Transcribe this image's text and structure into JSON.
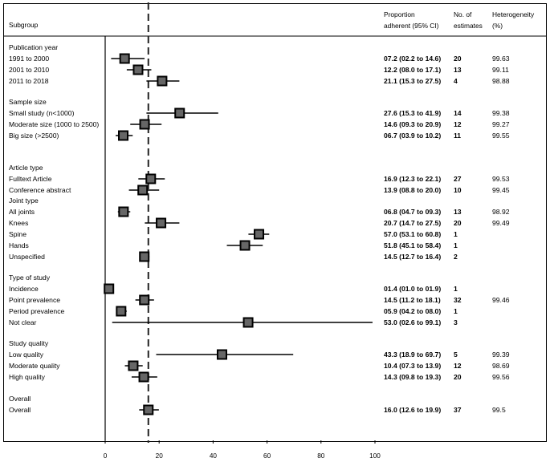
{
  "headers": {
    "subgroup": "Subgroup",
    "proportion_line1": "Proportion",
    "proportion_line2": "adherent (95% CI)",
    "estimates_line1": "No. of",
    "estimates_line2": "estimates",
    "heterogeneity_line1": "Heterogeneity",
    "heterogeneity_line2": "(%)"
  },
  "chart_data": {
    "type": "forest",
    "xlim": [
      0,
      100
    ],
    "xticks": [
      "0",
      "20",
      "40",
      "60",
      "80",
      "100"
    ],
    "reference_line": 16.0,
    "groups": [
      {
        "title": "Publication year",
        "rows": [
          {
            "label": "1991 to 2000",
            "est": 7.2,
            "lo": 2.2,
            "hi": 14.6,
            "ci_text": "07.2 (02.2 to 14.6)",
            "n": "20",
            "het": "99.63"
          },
          {
            "label": "2001 to 2010",
            "est": 12.2,
            "lo": 8.0,
            "hi": 17.1,
            "ci_text": "12.2 (08.0 to 17.1)",
            "n": "13",
            "het": "99.11"
          },
          {
            "label": "2011 to 2018",
            "est": 21.1,
            "lo": 15.3,
            "hi": 27.5,
            "ci_text": "21.1 (15.3 to 27.5)",
            "n": "4",
            "het": "98.88"
          }
        ]
      },
      {
        "title": "Sample size",
        "rows": [
          {
            "label": "Small study (n<1000)",
            "est": 27.6,
            "lo": 15.3,
            "hi": 41.9,
            "ci_text": "27.6 (15.3 to 41.9)",
            "n": "14",
            "het": "99.38"
          },
          {
            "label": "Moderate size (1000 to 2500)",
            "est": 14.6,
            "lo": 9.3,
            "hi": 20.9,
            "ci_text": "14.6 (09.3 to 20.9)",
            "n": "12",
            "het": "99.27"
          },
          {
            "label": "Big size (>2500)",
            "est": 6.7,
            "lo": 3.9,
            "hi": 10.2,
            "ci_text": "06.7 (03.9 to 10.2)",
            "n": "11",
            "het": "99.55"
          }
        ]
      },
      {
        "title": "Article type",
        "rows": [
          {
            "label": "Fulltext Article",
            "est": 16.9,
            "lo": 12.3,
            "hi": 22.1,
            "ci_text": "16.9 (12.3 to 22.1)",
            "n": "27",
            "het": "99.53"
          },
          {
            "label": "Conference abstract",
            "est": 13.9,
            "lo": 8.8,
            "hi": 20.0,
            "ci_text": "13.9 (08.8 to 20.0)",
            "n": "10",
            "het": "99.45"
          }
        ]
      },
      {
        "title": "Joint type",
        "rows": [
          {
            "label": "All joints",
            "est": 6.8,
            "lo": 4.7,
            "hi": 9.3,
            "ci_text": "06.8 (04.7 to 09.3)",
            "n": "13",
            "het": "98.92"
          },
          {
            "label": "Knees",
            "est": 20.7,
            "lo": 14.7,
            "hi": 27.5,
            "ci_text": "20.7 (14.7 to 27.5)",
            "n": "20",
            "het": "99.49"
          },
          {
            "label": "Spine",
            "est": 57.0,
            "lo": 53.1,
            "hi": 60.8,
            "ci_text": "57.0 (53.1 to 60.8)",
            "n": "1",
            "het": ""
          },
          {
            "label": "Hands",
            "est": 51.8,
            "lo": 45.1,
            "hi": 58.4,
            "ci_text": "51.8 (45.1 to 58.4)",
            "n": "1",
            "het": ""
          },
          {
            "label": "Unspecified",
            "est": 14.5,
            "lo": 12.7,
            "hi": 16.4,
            "ci_text": "14.5 (12.7 to 16.4)",
            "n": "2",
            "het": ""
          }
        ]
      },
      {
        "title": "Type of study",
        "rows": [
          {
            "label": "Incidence",
            "est": 1.4,
            "lo": 1.0,
            "hi": 1.9,
            "ci_text": "01.4 (01.0 to 01.9)",
            "n": "1",
            "het": ""
          },
          {
            "label": "Point prevalence",
            "est": 14.5,
            "lo": 11.2,
            "hi": 18.1,
            "ci_text": "14.5 (11.2 to 18.1)",
            "n": "32",
            "het": "99.46"
          },
          {
            "label": "Period prevalence",
            "est": 5.9,
            "lo": 4.2,
            "hi": 8.0,
            "ci_text": "05.9 (04.2 to 08.0)",
            "n": "1",
            "het": ""
          },
          {
            "label": "Not clear",
            "est": 53.0,
            "lo": 2.6,
            "hi": 99.1,
            "ci_text": "53.0 (02.6 to 99.1)",
            "n": "3",
            "het": ""
          }
        ]
      },
      {
        "title": "Study quality",
        "rows": [
          {
            "label": "Low quality",
            "est": 43.3,
            "lo": 18.9,
            "hi": 69.7,
            "ci_text": "43.3 (18.9 to 69.7)",
            "n": "5",
            "het": "99.39"
          },
          {
            "label": "Moderate quality",
            "est": 10.4,
            "lo": 7.3,
            "hi": 13.9,
            "ci_text": "10.4 (07.3 to 13.9)",
            "n": "12",
            "het": "98.69"
          },
          {
            "label": "High quality",
            "est": 14.3,
            "lo": 9.8,
            "hi": 19.3,
            "ci_text": "14.3 (09.8 to 19.3)",
            "n": "20",
            "het": "99.56"
          }
        ]
      },
      {
        "title": "Overall",
        "rows": [
          {
            "label": "Overall",
            "est": 16.0,
            "lo": 12.6,
            "hi": 19.9,
            "ci_text": "16.0 (12.6 to 19.9)",
            "n": "37",
            "het": "99.5"
          }
        ]
      }
    ]
  }
}
